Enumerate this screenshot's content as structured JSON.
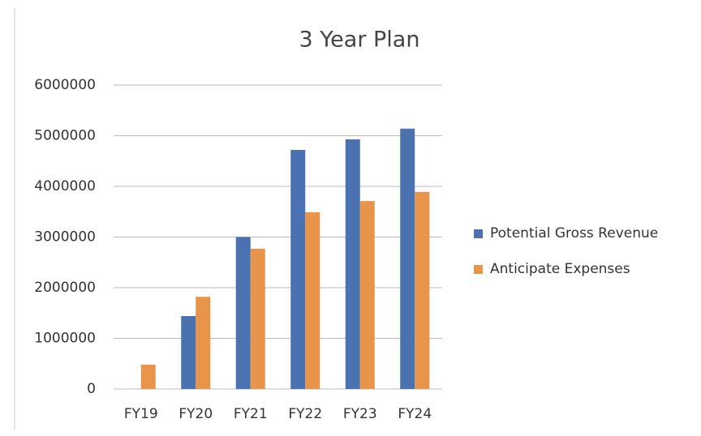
{
  "chart_data": {
    "type": "bar",
    "title": "3 Year Plan",
    "categories": [
      "FY19",
      "FY20",
      "FY21",
      "FY22",
      "FY23",
      "FY24"
    ],
    "series": [
      {
        "name": "Potential Gross Revenue",
        "color": "#4a72b0",
        "values": [
          0,
          1440000,
          3000000,
          4720000,
          4930000,
          5140000
        ]
      },
      {
        "name": "Anticipate Expenses",
        "color": "#e8944a",
        "values": [
          480000,
          1820000,
          2770000,
          3490000,
          3710000,
          3890000
        ]
      }
    ],
    "ylim": [
      0,
      6000000
    ],
    "yticks": [
      0,
      1000000,
      2000000,
      3000000,
      4000000,
      5000000,
      6000000
    ],
    "grid": true,
    "legend": "right"
  }
}
